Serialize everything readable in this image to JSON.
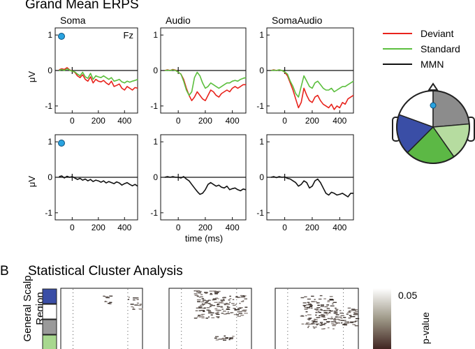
{
  "figure": {
    "title_a": "Grand Mean ERPS",
    "label_b": "B",
    "title_b": "Statistical Cluster Analysis",
    "conditions": [
      "Soma",
      "Audio",
      "SomaAudio"
    ],
    "electrode": "Fz",
    "ylabel": "μV",
    "xlabel": "time (ms)",
    "legend": [
      {
        "label": "Deviant",
        "color": "#e8231c"
      },
      {
        "label": "Standard",
        "color": "#5cbf3e"
      },
      {
        "label": "MMN",
        "color": "#111111"
      }
    ],
    "scalp_region_label": "General Scalp\nRegion",
    "colorbar": {
      "max_label": "0.05",
      "label": "p-value"
    }
  },
  "chart_data": [
    {
      "type": "line",
      "panel": "Soma",
      "row": "top",
      "x": [
        -100,
        -80,
        -60,
        -40,
        -20,
        0,
        20,
        40,
        60,
        80,
        100,
        120,
        140,
        160,
        180,
        200,
        220,
        240,
        260,
        280,
        300,
        320,
        340,
        360,
        380,
        400,
        420,
        440,
        460,
        480,
        500
      ],
      "series": [
        {
          "name": "Deviant",
          "color": "#e8231c",
          "values": [
            0.02,
            0.05,
            0.03,
            0.08,
            0.02,
            -0.02,
            -0.05,
            -0.15,
            -0.2,
            -0.12,
            -0.25,
            -0.3,
            -0.18,
            -0.35,
            -0.25,
            -0.3,
            -0.32,
            -0.28,
            -0.35,
            -0.4,
            -0.3,
            -0.45,
            -0.42,
            -0.38,
            -0.5,
            -0.55,
            -0.45,
            -0.5,
            -0.55,
            -0.48,
            -0.5
          ]
        },
        {
          "name": "Standard",
          "color": "#5cbf3e",
          "values": [
            0.0,
            0.03,
            0.0,
            0.05,
            0.01,
            -0.02,
            -0.04,
            -0.1,
            -0.15,
            -0.05,
            -0.18,
            -0.22,
            -0.08,
            -0.25,
            -0.15,
            -0.18,
            -0.2,
            -0.15,
            -0.2,
            -0.25,
            -0.2,
            -0.3,
            -0.28,
            -0.25,
            -0.32,
            -0.35,
            -0.3,
            -0.33,
            -0.3,
            -0.28,
            -0.25
          ]
        }
      ],
      "xlim": [
        -130,
        500
      ],
      "ylim": [
        -1.2,
        1.2
      ]
    },
    {
      "type": "line",
      "panel": "Audio",
      "row": "top",
      "x": [
        -100,
        -80,
        -60,
        -40,
        -20,
        0,
        20,
        40,
        60,
        80,
        100,
        120,
        140,
        160,
        180,
        200,
        220,
        240,
        260,
        280,
        300,
        320,
        340,
        360,
        380,
        400,
        420,
        440,
        460,
        480,
        500
      ],
      "series": [
        {
          "name": "Deviant",
          "color": "#e8231c",
          "values": [
            0.0,
            0.02,
            0.0,
            0.03,
            0.01,
            -0.05,
            -0.1,
            -0.25,
            -0.5,
            -0.7,
            -0.85,
            -0.75,
            -0.6,
            -0.7,
            -0.8,
            -0.85,
            -0.7,
            -0.55,
            -0.6,
            -0.7,
            -0.75,
            -0.65,
            -0.6,
            -0.55,
            -0.6,
            -0.5,
            -0.45,
            -0.5,
            -0.45,
            -0.4,
            -0.4
          ]
        },
        {
          "name": "Standard",
          "color": "#5cbf3e",
          "values": [
            0.0,
            0.01,
            0.0,
            0.02,
            0.0,
            -0.05,
            -0.1,
            -0.3,
            -0.55,
            -0.7,
            -0.6,
            -0.2,
            -0.05,
            -0.15,
            -0.35,
            -0.5,
            -0.45,
            -0.35,
            -0.4,
            -0.45,
            -0.5,
            -0.45,
            -0.4,
            -0.35,
            -0.35,
            -0.3,
            -0.28,
            -0.3,
            -0.25,
            -0.22,
            -0.2
          ]
        }
      ],
      "xlim": [
        -130,
        500
      ],
      "ylim": [
        -1.2,
        1.2
      ]
    },
    {
      "type": "line",
      "panel": "SomaAudio",
      "row": "top",
      "x": [
        -100,
        -80,
        -60,
        -40,
        -20,
        0,
        20,
        40,
        60,
        80,
        100,
        120,
        140,
        160,
        180,
        200,
        220,
        240,
        260,
        280,
        300,
        320,
        340,
        360,
        380,
        400,
        420,
        440,
        460,
        480,
        500
      ],
      "series": [
        {
          "name": "Deviant",
          "color": "#e8231c",
          "values": [
            0.0,
            0.02,
            0.0,
            0.02,
            0.0,
            -0.05,
            -0.15,
            -0.35,
            -0.55,
            -0.8,
            -1.05,
            -0.9,
            -0.5,
            -0.7,
            -0.85,
            -0.9,
            -0.75,
            -0.7,
            -0.85,
            -0.95,
            -1.0,
            -1.05,
            -0.95,
            -1.1,
            -1.0,
            -1.05,
            -0.9,
            -0.95,
            -0.8,
            -0.75,
            -0.7
          ]
        },
        {
          "name": "Standard",
          "color": "#5cbf3e",
          "values": [
            0.0,
            0.01,
            0.0,
            0.02,
            0.0,
            -0.04,
            -0.1,
            -0.3,
            -0.45,
            -0.65,
            -0.75,
            -0.45,
            -0.15,
            -0.3,
            -0.45,
            -0.5,
            -0.35,
            -0.3,
            -0.4,
            -0.5,
            -0.55,
            -0.55,
            -0.5,
            -0.6,
            -0.55,
            -0.5,
            -0.45,
            -0.45,
            -0.4,
            -0.35,
            -0.3
          ]
        }
      ],
      "xlim": [
        -130,
        500
      ],
      "ylim": [
        -1.2,
        1.2
      ]
    },
    {
      "type": "line",
      "panel": "Soma",
      "row": "bottom",
      "x": [
        -100,
        -80,
        -60,
        -40,
        -20,
        0,
        20,
        40,
        60,
        80,
        100,
        120,
        140,
        160,
        180,
        200,
        220,
        240,
        260,
        280,
        300,
        320,
        340,
        360,
        380,
        400,
        420,
        440,
        460,
        480,
        500
      ],
      "series": [
        {
          "name": "MMN",
          "color": "#111111",
          "values": [
            0.02,
            0.04,
            -0.02,
            0.03,
            0.0,
            0.02,
            -0.02,
            -0.06,
            -0.03,
            -0.08,
            -0.05,
            -0.1,
            -0.06,
            -0.12,
            -0.08,
            -0.1,
            -0.14,
            -0.1,
            -0.16,
            -0.12,
            -0.15,
            -0.18,
            -0.13,
            -0.16,
            -0.22,
            -0.18,
            -0.15,
            -0.2,
            -0.24,
            -0.2,
            -0.25
          ]
        }
      ],
      "xlim": [
        -130,
        500
      ],
      "ylim": [
        -1.2,
        1.2
      ]
    },
    {
      "type": "line",
      "panel": "Audio",
      "row": "bottom",
      "x": [
        -100,
        -80,
        -60,
        -40,
        -20,
        0,
        20,
        40,
        60,
        80,
        100,
        120,
        140,
        160,
        180,
        200,
        220,
        240,
        260,
        280,
        300,
        320,
        340,
        360,
        380,
        400,
        420,
        440,
        460,
        480,
        500
      ],
      "series": [
        {
          "name": "MMN",
          "color": "#111111",
          "values": [
            0.0,
            0.02,
            0.0,
            0.02,
            0.0,
            0.0,
            -0.02,
            0.02,
            -0.05,
            -0.1,
            -0.2,
            -0.3,
            -0.4,
            -0.48,
            -0.45,
            -0.35,
            -0.2,
            -0.15,
            -0.2,
            -0.25,
            -0.22,
            -0.28,
            -0.3,
            -0.25,
            -0.35,
            -0.32,
            -0.3,
            -0.35,
            -0.38,
            -0.33,
            -0.35
          ]
        }
      ],
      "xlim": [
        -130,
        500
      ],
      "ylim": [
        -1.2,
        1.2
      ]
    },
    {
      "type": "line",
      "panel": "SomaAudio",
      "row": "bottom",
      "x": [
        -100,
        -80,
        -60,
        -40,
        -20,
        0,
        20,
        40,
        60,
        80,
        100,
        120,
        140,
        160,
        180,
        200,
        220,
        240,
        260,
        280,
        300,
        320,
        340,
        360,
        380,
        400,
        420,
        440,
        460,
        480,
        500
      ],
      "series": [
        {
          "name": "MMN",
          "color": "#111111",
          "values": [
            0.0,
            0.02,
            -0.01,
            0.02,
            0.0,
            0.01,
            -0.03,
            -0.05,
            -0.1,
            -0.15,
            -0.25,
            -0.2,
            -0.1,
            -0.15,
            -0.3,
            -0.25,
            -0.1,
            -0.05,
            -0.15,
            -0.3,
            -0.45,
            -0.5,
            -0.42,
            -0.45,
            -0.5,
            -0.48,
            -0.45,
            -0.5,
            -0.55,
            -0.45,
            -0.45
          ]
        }
      ],
      "xlim": [
        -130,
        500
      ],
      "ylim": [
        -1.2,
        1.2
      ]
    }
  ],
  "axes": {
    "yticks": [
      1,
      0,
      -1
    ],
    "xticks": [
      0,
      200,
      400
    ]
  },
  "scalp_regions": [
    {
      "name": "white",
      "color": "#ffffff"
    },
    {
      "name": "grey",
      "color": "#8c8c8c"
    },
    {
      "name": "light-green",
      "color": "#b6dca0"
    },
    {
      "name": "green",
      "color": "#5cb845"
    },
    {
      "name": "blue",
      "color": "#3a4ea6"
    }
  ],
  "region_bar_colors": [
    "#3a4ea6",
    "#ffffff",
    "#9a9a9a",
    "#a8d88f"
  ]
}
